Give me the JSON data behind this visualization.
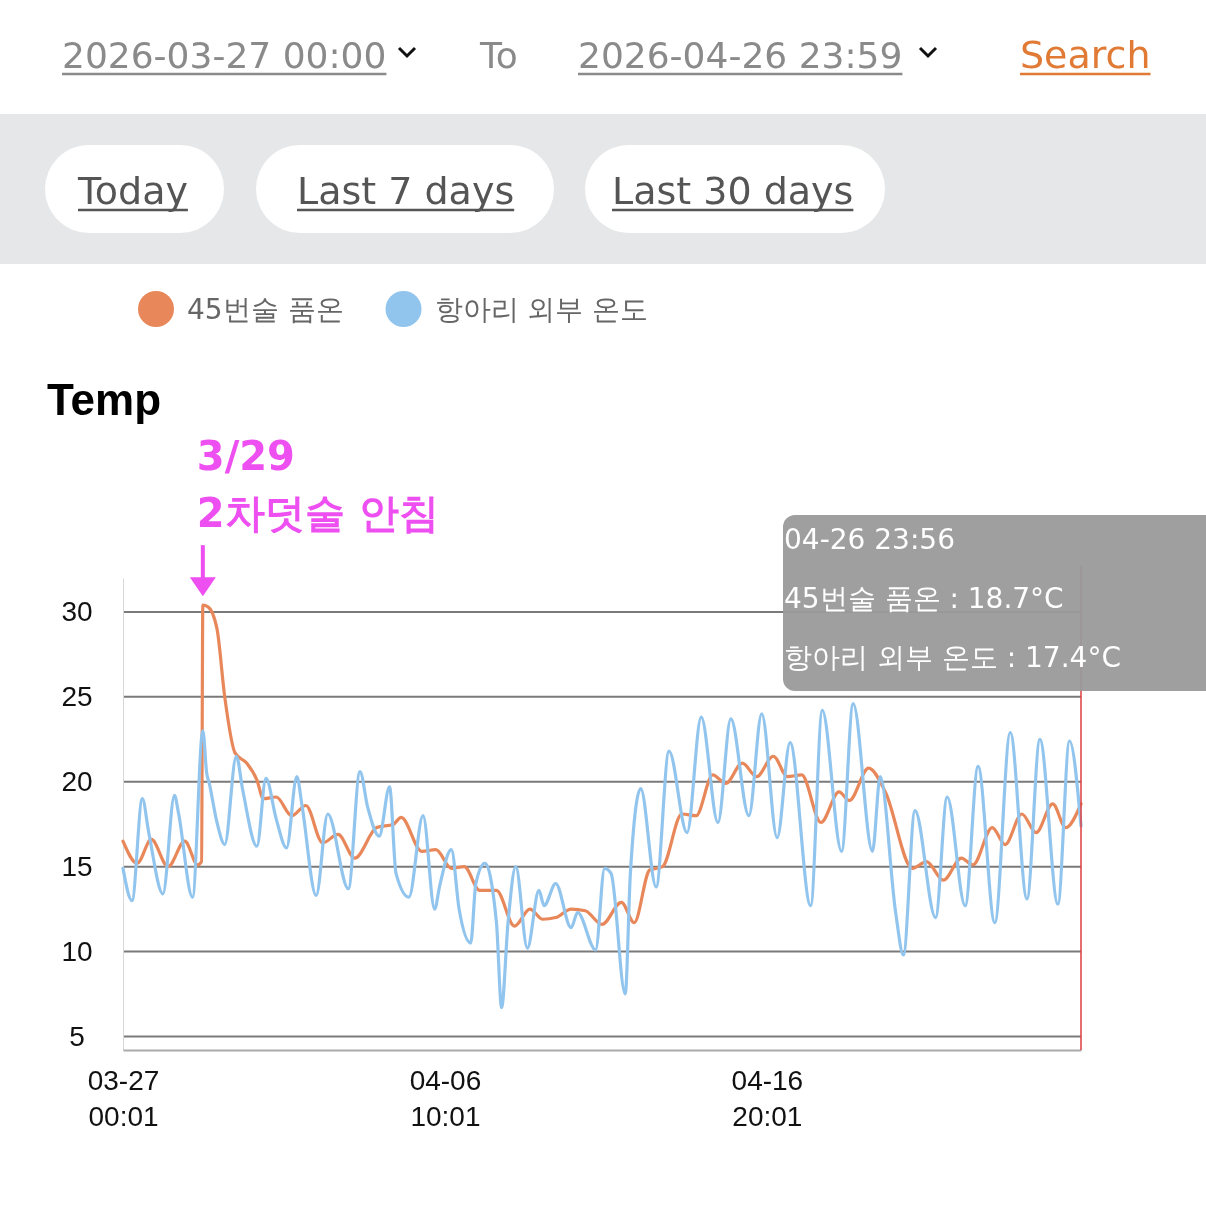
{
  "chart_data": {
    "type": "line",
    "ylabel": "Temp",
    "xlim": [
      "2026-03-27T00:00",
      "2026-04-26T23:56"
    ],
    "xticks": [
      {
        "value": "2026-03-27T00:01",
        "label": "03-27\n00:01"
      },
      {
        "value": "2026-04-06T10:01",
        "label": "04-06\n10:01"
      },
      {
        "value": "2026-04-16T20:01",
        "label": "04-16\n20:01"
      }
    ],
    "ylim": [
      4.2,
      32
    ],
    "yticks": [
      5,
      10,
      15,
      20,
      25,
      30
    ],
    "grid": "y",
    "legend": "top left",
    "series": [
      {
        "name": "45번술 품온",
        "color": "#e8885a",
        "x": [
          "2026-03-27T00:00",
          "2026-03-27T11:00",
          "2026-03-27T22:00",
          "2026-03-28T11:00",
          "2026-03-29T00:00",
          "2026-03-29T10:00",
          "2026-03-29T13:00",
          "2026-03-29T14:00",
          "2026-03-29T18:00",
          "2026-03-30T01:00",
          "2026-03-30T07:00",
          "2026-03-30T15:00",
          "2026-03-31T00:00",
          "2026-03-31T08:00",
          "2026-03-31T13:00",
          "2026-03-31T23:00",
          "2026-04-01T11:00",
          "2026-04-01T22:00",
          "2026-04-02T11:00",
          "2026-04-02T23:00",
          "2026-04-03T12:00",
          "2026-04-04T05:00",
          "2026-04-04T18:00",
          "2026-04-05T00:00",
          "2026-04-05T16:00",
          "2026-04-06T03:00",
          "2026-04-06T15:00",
          "2026-04-07T01:00",
          "2026-04-07T13:00",
          "2026-04-08T02:00",
          "2026-04-08T16:00",
          "2026-04-09T04:00",
          "2026-04-09T14:00",
          "2026-04-10T00:00",
          "2026-04-10T12:00",
          "2026-04-10T23:00",
          "2026-04-11T12:00",
          "2026-04-12T03:00",
          "2026-04-12T13:00",
          "2026-04-13T01:00",
          "2026-04-13T11:00",
          "2026-04-14T02:00",
          "2026-04-14T13:00",
          "2026-04-15T02:00",
          "2026-04-15T12:00",
          "2026-04-16T01:00",
          "2026-04-16T12:00",
          "2026-04-17T01:00",
          "2026-04-17T12:00",
          "2026-04-17T23:00",
          "2026-04-18T14:00",
          "2026-04-19T04:00",
          "2026-04-19T12:00",
          "2026-04-20T03:00",
          "2026-04-20T16:00",
          "2026-04-21T13:00",
          "2026-04-22T00:00",
          "2026-04-22T13:00",
          "2026-04-23T03:00",
          "2026-04-23T12:00",
          "2026-04-24T03:00",
          "2026-04-24T13:00",
          "2026-04-25T02:00",
          "2026-04-25T13:00",
          "2026-04-26T02:00",
          "2026-04-26T12:00",
          "2026-04-26T23:56"
        ],
        "values": [
          16.5,
          15.2,
          16.6,
          15.0,
          16.5,
          15.1,
          15.3,
          30.4,
          30.3,
          29.0,
          25.0,
          21.7,
          21.1,
          20.1,
          19.0,
          19.1,
          18.0,
          18.6,
          16.4,
          16.9,
          15.5,
          17.3,
          17.5,
          17.9,
          15.9,
          16.0,
          14.9,
          15.0,
          13.6,
          13.6,
          11.5,
          12.5,
          11.9,
          12.0,
          12.5,
          12.4,
          11.6,
          12.9,
          11.7,
          14.8,
          15.0,
          18.1,
          18.0,
          20.4,
          19.9,
          21.1,
          20.3,
          21.5,
          20.3,
          20.4,
          17.6,
          19.4,
          18.9,
          20.8,
          19.4,
          14.9,
          15.3,
          14.2,
          15.5,
          15.1,
          17.3,
          16.3,
          18.1,
          17.0,
          18.7,
          17.3,
          18.7
        ]
      },
      {
        "name": "항아리 외부 온도",
        "color": "#92c5ee",
        "x": [
          "2026-03-27T00:00",
          "2026-03-27T07:00",
          "2026-03-27T15:00",
          "2026-03-27T20:00",
          "2026-03-28T07:00",
          "2026-03-28T16:00",
          "2026-03-28T19:00",
          "2026-03-29T06:00",
          "2026-03-29T14:00",
          "2026-03-29T17:00",
          "2026-03-29T19:00",
          "2026-03-30T01:00",
          "2026-03-30T07:00",
          "2026-03-30T16:00",
          "2026-03-30T21:00",
          "2026-03-31T08:00",
          "2026-03-31T15:00",
          "2026-03-31T23:00",
          "2026-04-01T07:00",
          "2026-04-01T15:00",
          "2026-04-01T19:00",
          "2026-04-02T06:00",
          "2026-04-02T15:00",
          "2026-04-03T07:00",
          "2026-04-03T16:00",
          "2026-04-03T22:00",
          "2026-04-04T07:00",
          "2026-04-04T15:00",
          "2026-04-04T20:00",
          "2026-04-05T06:00",
          "2026-04-05T17:00",
          "2026-04-06T02:00",
          "2026-04-06T06:00",
          "2026-04-06T15:00",
          "2026-04-06T21:00",
          "2026-04-07T06:00",
          "2026-04-07T10:00",
          "2026-04-07T17:00",
          "2026-04-08T02:00",
          "2026-04-08T06:00",
          "2026-04-08T11:00",
          "2026-04-08T17:00",
          "2026-04-09T02:00",
          "2026-04-09T11:00",
          "2026-04-09T15:00",
          "2026-04-10T00:00",
          "2026-04-10T12:00",
          "2026-04-10T17:00",
          "2026-04-11T07:00",
          "2026-04-11T14:00",
          "2026-04-11T19:00",
          "2026-04-12T06:00",
          "2026-04-12T10:00",
          "2026-04-12T18:00",
          "2026-04-13T06:00",
          "2026-04-13T16:00",
          "2026-04-14T06:00",
          "2026-04-14T17:00",
          "2026-04-15T06:00",
          "2026-04-15T16:00",
          "2026-04-16T06:00",
          "2026-04-16T16:00",
          "2026-04-17T04:00",
          "2026-04-17T14:00",
          "2026-04-18T06:00",
          "2026-04-18T15:00",
          "2026-04-19T06:00",
          "2026-04-19T15:00",
          "2026-04-20T06:00",
          "2026-04-20T12:00",
          "2026-04-21T00:00",
          "2026-04-21T06:00",
          "2026-04-21T15:00",
          "2026-04-22T07:00",
          "2026-04-22T16:00",
          "2026-04-23T06:00",
          "2026-04-23T16:00",
          "2026-04-24T05:00",
          "2026-04-24T17:00",
          "2026-04-25T06:00",
          "2026-04-25T16:00",
          "2026-04-26T06:00",
          "2026-04-26T15:00",
          "2026-04-26T23:56"
        ],
        "values": [
          14.9,
          13.0,
          19.0,
          17.0,
          13.4,
          19.2,
          18.2,
          13.2,
          23.0,
          20.5,
          19.9,
          17.6,
          16.3,
          21.5,
          19.5,
          16.2,
          20.2,
          17.8,
          16.1,
          20.3,
          18.6,
          13.3,
          18.1,
          13.7,
          20.6,
          18.5,
          16.8,
          19.7,
          14.6,
          13.2,
          18.0,
          12.5,
          13.9,
          16.0,
          12.5,
          10.5,
          14.0,
          15.2,
          11.7,
          6.7,
          11.7,
          15.0,
          10.2,
          13.6,
          12.7,
          14.0,
          11.4,
          12.3,
          10.1,
          14.9,
          14.6,
          7.5,
          14.6,
          19.6,
          13.8,
          21.8,
          17.0,
          23.8,
          17.6,
          23.7,
          18.0,
          24.0,
          16.7,
          22.3,
          12.7,
          24.2,
          15.9,
          24.6,
          15.9,
          20.3,
          12.3,
          9.8,
          18.3,
          12.0,
          19.1,
          12.7,
          20.9,
          11.7,
          22.9,
          13.1,
          22.5,
          12.8,
          22.4,
          17.4
        ]
      }
    ],
    "ref_lines": [
      {
        "axis": "x",
        "value": "2026-04-26T23:56",
        "color": "#e03c3c"
      }
    ],
    "annotations": [
      "2026-03-27 00:00",
      "To",
      "2026-04-26 23:59",
      "Search",
      "Today",
      "Last 7 days",
      "Last 30 days",
      {
        "text": "3/29\n2차덧술 안침",
        "x": "2026-03-29T14:00",
        "y": 30.4
      },
      "04-26 23:56",
      "45번술 품온 : 18.7°C",
      "항아리 외부 온도 : 17.4°C"
    ]
  }
}
